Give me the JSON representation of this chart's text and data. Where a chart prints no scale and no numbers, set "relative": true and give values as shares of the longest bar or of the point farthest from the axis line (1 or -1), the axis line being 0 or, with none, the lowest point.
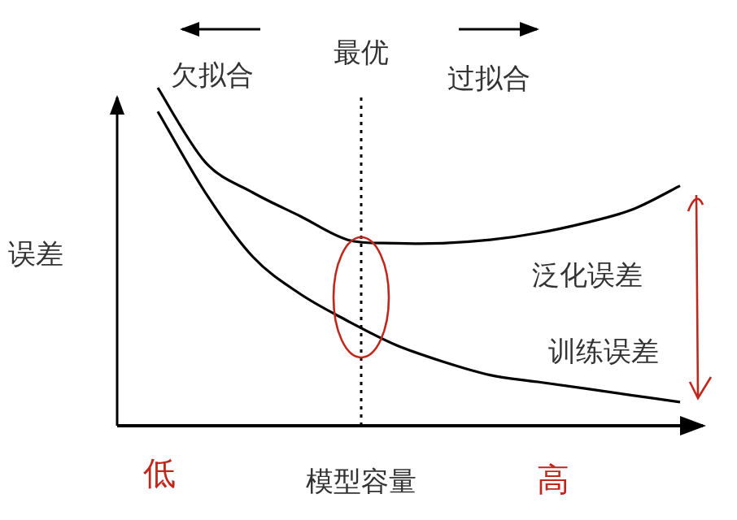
{
  "chart_data": {
    "type": "line",
    "relative": true,
    "xlabel": "模型容量",
    "ylabel": "误差",
    "categories": [
      null,
      null,
      null,
      null,
      null,
      null,
      null,
      null,
      null,
      null,
      null,
      null
    ],
    "series": [
      {
        "name": "泛化误差",
        "color": "#000000",
        "values": [
          1,
          0.78,
          0.69,
          0.62,
          0.55,
          0.54,
          0.54,
          0.55,
          0.57,
          0.6,
          0.64,
          0.71
        ]
      },
      {
        "name": "训练误差",
        "color": "#000000",
        "values": [
          0.93,
          0.69,
          0.5,
          0.39,
          0.31,
          0.24,
          0.19,
          0.15,
          0.13,
          0.11,
          0.09,
          0.07
        ]
      }
    ],
    "annotations": [
      "欠拟合",
      "最优",
      "过拟合",
      "低",
      "高"
    ],
    "marker": "none",
    "line_style": "solid"
  }
}
